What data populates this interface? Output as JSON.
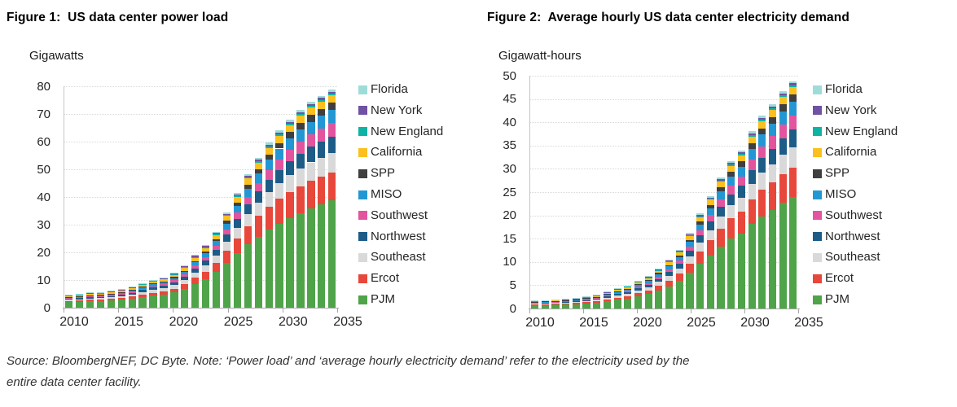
{
  "footer": {
    "lines": [
      "Source: BloombergNEF, DC Byte. Note: ‘Power load’ and ‘average hourly electricity demand’ refer to the electricity used by the",
      "entire data center facility."
    ]
  },
  "chart_data": [
    {
      "type": "bar",
      "stacked": true,
      "title": "Figure 1:  US data center power load",
      "unit_label": "Gigawatts",
      "x": [
        2010,
        2011,
        2012,
        2013,
        2014,
        2015,
        2016,
        2017,
        2018,
        2019,
        2020,
        2021,
        2022,
        2023,
        2024,
        2025,
        2026,
        2027,
        2028,
        2029,
        2030,
        2031,
        2032,
        2033,
        2034,
        2035
      ],
      "x_tick_labels": [
        "2010",
        "2015",
        "2020",
        "2025",
        "2030",
        "2035"
      ],
      "ylim": [
        0,
        80
      ],
      "yticks": [
        0,
        10,
        20,
        30,
        40,
        50,
        60,
        70,
        80
      ],
      "grid": "horizontal-dotted",
      "legend_position": "right",
      "stack_note": "series listed top-of-stack first; PJM is bottom of stack",
      "series": [
        {
          "name": "Florida",
          "color": "#9EDCD9",
          "values": [
            0.15,
            0.15,
            0.16,
            0.16,
            0.17,
            0.18,
            0.2,
            0.22,
            0.24,
            0.26,
            0.28,
            0.31,
            0.35,
            0.39,
            0.44,
            0.5,
            0.57,
            0.63,
            0.68,
            0.72,
            0.75,
            0.77,
            0.79,
            0.8,
            0.8,
            0.8
          ]
        },
        {
          "name": "New York",
          "color": "#6F52A3",
          "values": [
            0.15,
            0.15,
            0.16,
            0.16,
            0.17,
            0.18,
            0.2,
            0.22,
            0.24,
            0.25,
            0.27,
            0.3,
            0.33,
            0.37,
            0.41,
            0.46,
            0.5,
            0.54,
            0.57,
            0.6,
            0.62,
            0.63,
            0.64,
            0.65,
            0.65,
            0.65
          ]
        },
        {
          "name": "New England",
          "color": "#0FB3A4",
          "values": [
            0.07,
            0.07,
            0.08,
            0.08,
            0.09,
            0.1,
            0.11,
            0.13,
            0.14,
            0.15,
            0.18,
            0.21,
            0.25,
            0.29,
            0.33,
            0.38,
            0.42,
            0.46,
            0.49,
            0.51,
            0.53,
            0.54,
            0.55,
            0.55,
            0.55,
            0.55
          ]
        },
        {
          "name": "California",
          "color": "#FBC01E",
          "values": [
            0.5,
            0.52,
            0.54,
            0.56,
            0.58,
            0.62,
            0.68,
            0.75,
            0.82,
            0.87,
            0.95,
            1.05,
            1.2,
            1.35,
            1.5,
            1.75,
            2.0,
            2.2,
            2.35,
            2.45,
            2.55,
            2.6,
            2.65,
            2.68,
            2.7,
            2.7
          ]
        },
        {
          "name": "SPP",
          "color": "#3F3F3F",
          "values": [
            0.1,
            0.11,
            0.12,
            0.13,
            0.14,
            0.15,
            0.18,
            0.21,
            0.24,
            0.27,
            0.32,
            0.4,
            0.5,
            0.62,
            0.76,
            1.0,
            1.25,
            1.5,
            1.7,
            1.9,
            2.05,
            2.2,
            2.3,
            2.4,
            2.45,
            2.5
          ]
        },
        {
          "name": "MISO",
          "color": "#2397D4",
          "values": [
            0.3,
            0.32,
            0.35,
            0.36,
            0.39,
            0.43,
            0.49,
            0.57,
            0.65,
            0.7,
            0.82,
            0.97,
            1.2,
            1.4,
            1.65,
            2.1,
            2.5,
            2.9,
            3.3,
            3.6,
            3.9,
            4.1,
            4.3,
            4.5,
            4.6,
            4.7
          ]
        },
        {
          "name": "Southwest",
          "color": "#E2549E",
          "values": [
            0.25,
            0.27,
            0.29,
            0.3,
            0.32,
            0.36,
            0.41,
            0.48,
            0.55,
            0.6,
            0.7,
            0.85,
            1.05,
            1.25,
            1.5,
            1.9,
            2.3,
            2.7,
            3.1,
            3.5,
            3.8,
            4.1,
            4.4,
            4.6,
            4.8,
            5.0
          ]
        },
        {
          "name": "Northwest",
          "color": "#1D5C87",
          "values": [
            0.36,
            0.38,
            0.41,
            0.43,
            0.46,
            0.52,
            0.59,
            0.69,
            0.79,
            0.86,
            1.0,
            1.2,
            1.5,
            1.8,
            2.1,
            2.65,
            3.2,
            3.7,
            4.1,
            4.5,
            4.8,
            5.1,
            5.4,
            5.6,
            5.8,
            6.0
          ]
        },
        {
          "name": "Southeast",
          "color": "#D9D9D9",
          "values": [
            0.5,
            0.53,
            0.57,
            0.6,
            0.63,
            0.7,
            0.8,
            0.92,
            1.05,
            1.12,
            1.3,
            1.5,
            1.85,
            2.15,
            2.5,
            3.1,
            3.7,
            4.3,
            4.8,
            5.3,
            5.7,
            6.1,
            6.4,
            6.7,
            6.9,
            7.1
          ]
        },
        {
          "name": "Ercot",
          "color": "#E8473B",
          "values": [
            0.4,
            0.45,
            0.5,
            0.5,
            0.55,
            0.6,
            0.7,
            0.85,
            1.0,
            1.1,
            1.4,
            1.7,
            2.2,
            2.7,
            3.4,
            4.4,
            5.5,
            6.6,
            7.5,
            8.3,
            8.9,
            9.4,
            9.7,
            9.9,
            10.0,
            10.1
          ]
        },
        {
          "name": "PJM",
          "color": "#4FA349",
          "values": [
            2.0,
            2.1,
            2.3,
            2.4,
            2.6,
            2.9,
            3.3,
            3.9,
            4.4,
            4.8,
            5.5,
            6.7,
            8.6,
            10.3,
            12.9,
            16.2,
            19.6,
            22.8,
            25.6,
            28.2,
            30.4,
            32.4,
            34.2,
            35.9,
            37.3,
            38.7
          ]
        }
      ]
    },
    {
      "type": "bar",
      "stacked": true,
      "title": "Figure 2:  Average hourly US data center electricity demand",
      "unit_label": "Gigawatt-hours",
      "x": [
        2010,
        2011,
        2012,
        2013,
        2014,
        2015,
        2016,
        2017,
        2018,
        2019,
        2020,
        2021,
        2022,
        2023,
        2024,
        2025,
        2026,
        2027,
        2028,
        2029,
        2030,
        2031,
        2032,
        2033,
        2034,
        2035
      ],
      "x_tick_labels": [
        "2010",
        "2015",
        "2020",
        "2025",
        "2030",
        "2035"
      ],
      "ylim": [
        0,
        50
      ],
      "yticks": [
        0,
        5,
        10,
        15,
        20,
        25,
        30,
        35,
        40,
        45,
        50
      ],
      "grid": "horizontal-dotted",
      "legend_position": "right",
      "stack_note": "series listed top-of-stack first; PJM is bottom of stack",
      "series": [
        {
          "name": "Florida",
          "color": "#9EDCD9",
          "values": [
            0.05,
            0.05,
            0.06,
            0.06,
            0.06,
            0.07,
            0.08,
            0.09,
            0.1,
            0.12,
            0.13,
            0.14,
            0.16,
            0.18,
            0.2,
            0.24,
            0.28,
            0.32,
            0.35,
            0.38,
            0.4,
            0.43,
            0.46,
            0.47,
            0.49,
            0.5
          ]
        },
        {
          "name": "New York",
          "color": "#6F52A3",
          "values": [
            0.05,
            0.05,
            0.06,
            0.06,
            0.06,
            0.07,
            0.08,
            0.09,
            0.1,
            0.11,
            0.13,
            0.14,
            0.15,
            0.17,
            0.19,
            0.22,
            0.25,
            0.27,
            0.3,
            0.32,
            0.33,
            0.35,
            0.37,
            0.38,
            0.4,
            0.4
          ]
        },
        {
          "name": "New England",
          "color": "#0FB3A4",
          "values": [
            0.03,
            0.03,
            0.03,
            0.03,
            0.03,
            0.04,
            0.04,
            0.05,
            0.06,
            0.07,
            0.08,
            0.1,
            0.11,
            0.13,
            0.15,
            0.18,
            0.21,
            0.23,
            0.25,
            0.27,
            0.28,
            0.3,
            0.32,
            0.32,
            0.34,
            0.34
          ]
        },
        {
          "name": "California",
          "color": "#FBC01E",
          "values": [
            0.18,
            0.19,
            0.19,
            0.2,
            0.21,
            0.24,
            0.27,
            0.31,
            0.35,
            0.39,
            0.45,
            0.48,
            0.54,
            0.62,
            0.69,
            0.82,
            0.98,
            1.1,
            1.22,
            1.3,
            1.35,
            1.46,
            1.54,
            1.58,
            1.65,
            1.67
          ]
        },
        {
          "name": "SPP",
          "color": "#3F3F3F",
          "values": [
            0.04,
            0.04,
            0.04,
            0.05,
            0.05,
            0.06,
            0.07,
            0.09,
            0.1,
            0.12,
            0.15,
            0.18,
            0.23,
            0.29,
            0.35,
            0.47,
            0.61,
            0.75,
            0.88,
            1.01,
            1.09,
            1.23,
            1.33,
            1.42,
            1.49,
            1.55
          ]
        },
        {
          "name": "MISO",
          "color": "#2397D4",
          "values": [
            0.11,
            0.12,
            0.13,
            0.13,
            0.14,
            0.17,
            0.19,
            0.23,
            0.28,
            0.32,
            0.39,
            0.45,
            0.54,
            0.64,
            0.76,
            0.99,
            1.23,
            1.45,
            1.72,
            1.91,
            2.07,
            2.3,
            2.49,
            2.66,
            2.81,
            2.91
          ]
        },
        {
          "name": "Southwest",
          "color": "#E2549E",
          "values": [
            0.09,
            0.1,
            0.1,
            0.11,
            0.12,
            0.14,
            0.16,
            0.2,
            0.24,
            0.27,
            0.33,
            0.39,
            0.47,
            0.58,
            0.69,
            0.89,
            1.13,
            1.35,
            1.61,
            1.86,
            2.01,
            2.3,
            2.55,
            2.71,
            2.93,
            3.1
          ]
        },
        {
          "name": "Northwest",
          "color": "#1D5C87",
          "values": [
            0.13,
            0.14,
            0.15,
            0.15,
            0.17,
            0.2,
            0.23,
            0.28,
            0.34,
            0.39,
            0.47,
            0.55,
            0.68,
            0.83,
            0.97,
            1.25,
            1.57,
            1.85,
            2.13,
            2.39,
            2.54,
            2.86,
            3.13,
            3.3,
            3.54,
            3.72
          ]
        },
        {
          "name": "Southeast",
          "color": "#D9D9D9",
          "values": [
            0.18,
            0.19,
            0.21,
            0.22,
            0.23,
            0.27,
            0.31,
            0.38,
            0.45,
            0.5,
            0.61,
            0.69,
            0.83,
            0.99,
            1.15,
            1.46,
            1.81,
            2.15,
            2.5,
            2.81,
            3.02,
            3.42,
            3.71,
            3.95,
            4.21,
            4.4
          ]
        },
        {
          "name": "Ercot",
          "color": "#E8473B",
          "values": [
            0.14,
            0.16,
            0.18,
            0.18,
            0.2,
            0.23,
            0.27,
            0.35,
            0.43,
            0.5,
            0.66,
            0.78,
            0.99,
            1.24,
            1.56,
            2.07,
            2.7,
            3.3,
            3.9,
            4.4,
            4.72,
            5.26,
            5.63,
            5.84,
            6.1,
            6.26
          ]
        },
        {
          "name": "PJM",
          "color": "#4FA349",
          "values": [
            0.72,
            0.76,
            0.83,
            0.86,
            0.96,
            1.12,
            1.29,
            1.6,
            1.89,
            2.16,
            2.59,
            3.08,
            3.87,
            4.74,
            5.93,
            7.61,
            9.6,
            11.4,
            13.31,
            14.95,
            16.11,
            18.14,
            19.84,
            21.18,
            22.75,
            24.0
          ]
        }
      ]
    }
  ]
}
